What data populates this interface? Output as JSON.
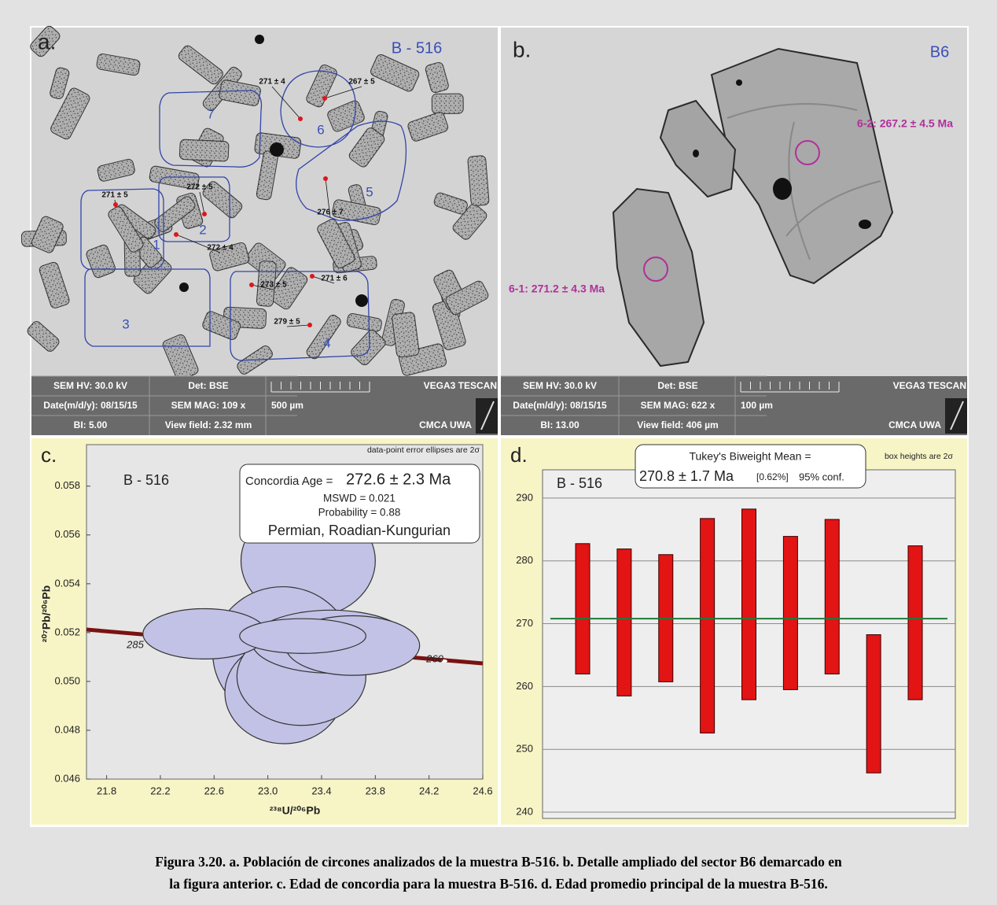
{
  "panel_a": {
    "letter": "a.",
    "sample": "B - 516",
    "regions": [
      "7",
      "6",
      "5",
      "2",
      "1",
      "3",
      "4"
    ],
    "ages": [
      "271 ± 4",
      "267 ± 5",
      "272 ± 5",
      "271 ± 5",
      "276 ± 7",
      "272 ± 4",
      "273 ± 5",
      "271 ± 6",
      "279 ± 5"
    ],
    "info": [
      "SEM HV: 30.0 kV",
      "Det: BSE",
      "VEGA3 TESCAN",
      "Date(m/d/y): 08/15/15",
      "SEM MAG: 109 x",
      "500 µm",
      "BI: 5.00",
      "View field: 2.32 mm",
      "CMCA UWA"
    ]
  },
  "panel_b": {
    "letter": "b.",
    "sample": "B6",
    "spots": [
      "6-2: 267.2 ± 4.5 Ma",
      "6-1: 271.2 ± 4.3 Ma"
    ],
    "info": [
      "SEM HV: 30.0 kV",
      "Det: BSE",
      "VEGA3 TESCAN",
      "Date(m/d/y): 08/15/15",
      "SEM MAG: 622 x",
      "100 µm",
      "BI: 13.00",
      "View field: 406 µm",
      "CMCA UWA"
    ]
  },
  "chart_data": [
    {
      "type": "ellipse",
      "letter": "c.",
      "note": "data-point error ellipses are 2σ",
      "sample": "B - 516",
      "age_label": "Concordia Age =",
      "age": "272.6 ± 2.3 Ma",
      "mswd": "MSWD = 0.021",
      "probability": "Probability = 0.88",
      "period": "Permian, Roadian-Kungurian",
      "x_label": "²³⁸U/²⁰⁶Pb",
      "y_label": "²⁰⁷Pb/²⁰⁶Pb",
      "concordia_ticks": [
        285,
        260
      ],
      "x": [
        23.3,
        23.11,
        23.12,
        23.25,
        23.47,
        22.53,
        23.63,
        23.26
      ],
      "y": [
        0.05494,
        0.05115,
        0.04954,
        0.0502,
        0.05163,
        0.05195,
        0.05147,
        0.05186
      ],
      "xerr": [
        0.5,
        0.52,
        0.44,
        0.48,
        0.59,
        0.46,
        0.5,
        0.47
      ],
      "yerr": [
        0.00232,
        0.00273,
        0.00209,
        0.002,
        0.00129,
        0.00103,
        0.00122,
        0.00071
      ],
      "color": "#c2c2e6",
      "xlim": [
        21.65,
        24.6
      ],
      "ylim": [
        0.046,
        0.0597
      ],
      "xticks": [
        21.8,
        22.2,
        22.6,
        {
          "value": 23,
          "label": "23.0"
        },
        23.4,
        23.8,
        24.2,
        24.6
      ],
      "yticks": [
        0.046,
        0.048,
        {
          "value": 0.05,
          "label": "0.050"
        },
        0.052,
        0.054,
        0.056,
        0.058
      ]
    },
    {
      "type": "range-bar",
      "letter": "d.",
      "note": "box heights are 2σ",
      "sample": "B - 516",
      "mean_label": "Tukey's Biweight Mean =",
      "mean_text": "270.8 ± 1.7 Ma",
      "mean_pct": "[0.62%]",
      "conf": "95% conf.",
      "mean": 270.8,
      "mean_color": "#1f7a3a",
      "categories": [
        null,
        null,
        null,
        null,
        null,
        null,
        null,
        null,
        null
      ],
      "high": [
        282.75,
        281.9,
        281.0,
        286.75,
        288.25,
        283.9,
        286.6,
        268.25,
        282.4
      ],
      "low": [
        262.0,
        258.5,
        260.75,
        252.6,
        257.9,
        259.5,
        262.0,
        246.25,
        257.9
      ],
      "color": "#e21414",
      "ylim": [
        239,
        294.5
      ],
      "yticks": [
        240,
        250,
        260,
        270,
        280,
        290
      ],
      "grid": true
    }
  ],
  "caption": [
    "Figura 3.20. a. Población de circones analizados de la muestra B-516. b. Detalle ampliado del sector B6 demarcado en",
    "la figura anterior. c. Edad de concordia para la muestra B-516. d. Edad promedio principal de la muestra B-516."
  ]
}
